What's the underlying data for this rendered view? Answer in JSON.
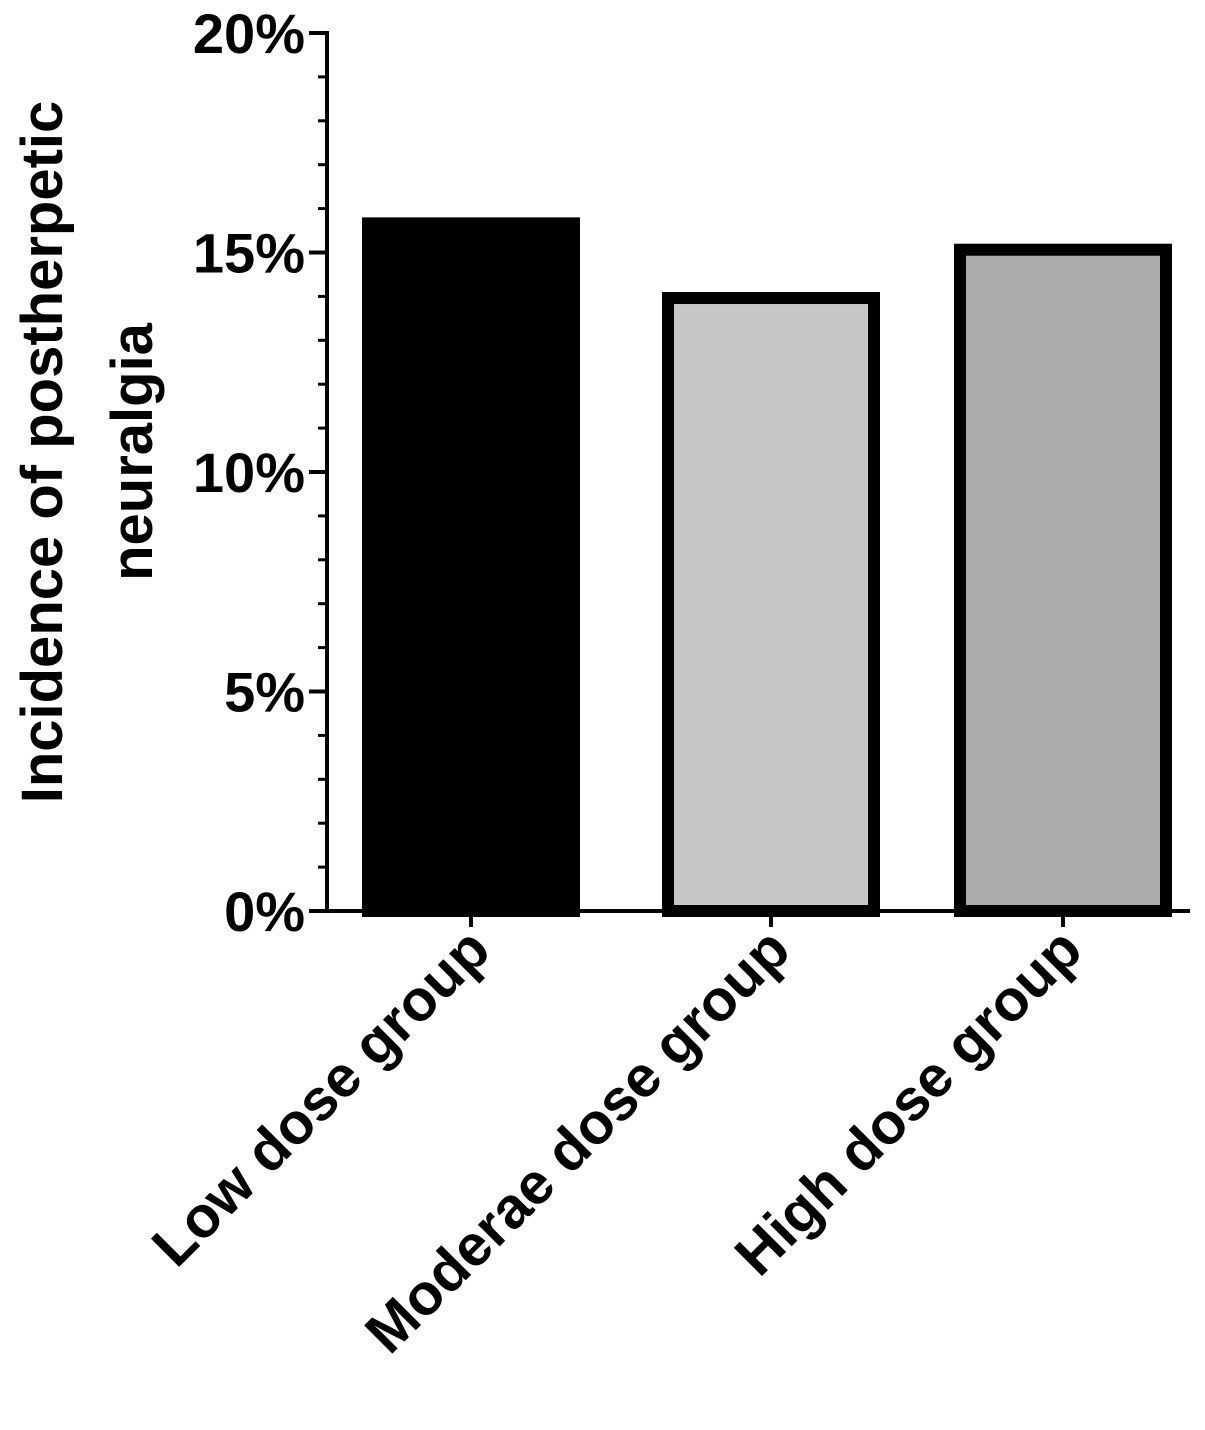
{
  "chart_data": {
    "type": "bar",
    "categories": [
      "Low dose group",
      "Moderae dose group",
      "High dose group"
    ],
    "values": [
      15.8,
      14.1,
      15.2
    ],
    "bar_colors": [
      "#000000",
      "#c6c6c6",
      "#ababab"
    ],
    "bar_border_color": "#000000",
    "ylabel_lines": [
      "Incidence of postherpetic",
      "neuralgia"
    ],
    "xlabel": "",
    "ylim": [
      0,
      20
    ],
    "y_major_ticks": [
      0,
      5,
      10,
      15,
      20
    ],
    "y_tick_labels": [
      "0%",
      "5%",
      "10%",
      "15%",
      "20%"
    ],
    "y_minor_step": 1,
    "grid": false,
    "legend": "none"
  }
}
